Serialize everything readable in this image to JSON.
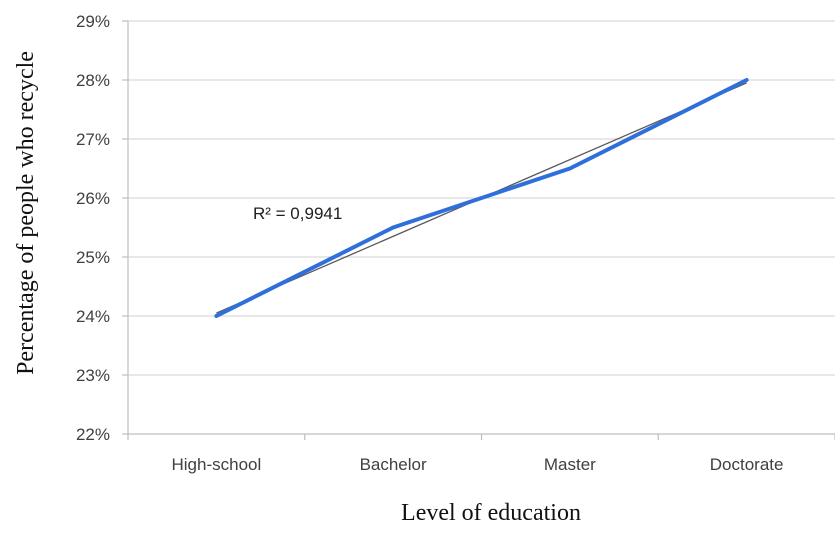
{
  "chart_data": {
    "type": "line",
    "title": "",
    "xlabel": "Level of education",
    "ylabel": "Percentage of people who recycle",
    "categories": [
      "High-school",
      "Bachelor",
      "Master",
      "Doctorate"
    ],
    "series": [
      {
        "values": [
          24,
          25.5,
          26.5,
          28
        ],
        "color": "#2f6fdc"
      }
    ],
    "trendline": {
      "type": "linear",
      "color": "#5a5a5a",
      "label": "R² = 0,9941"
    },
    "ylim": [
      22,
      29
    ],
    "yticks": [
      22,
      23,
      24,
      25,
      26,
      27,
      28,
      29
    ],
    "ytick_labels": [
      "22%",
      "23%",
      "24%",
      "25%",
      "26%",
      "27%",
      "28%",
      "29%"
    ],
    "grid": "horizontal",
    "legend": "none"
  }
}
